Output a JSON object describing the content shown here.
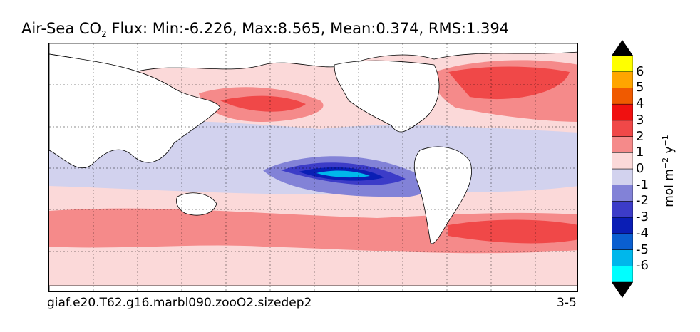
{
  "title": {
    "prefix": "Air-Sea CO",
    "subscript": "2",
    "stats": " Flux: Min:-6.226, Max:8.565, Mean:0.374, RMS:1.394"
  },
  "caption": "giaf.e20.T62.g16.marbl090.zooO2.sizedep2",
  "panel_id": "3-5",
  "colorbar": {
    "units_prefix": "mol m",
    "units_exp1": "−2",
    "units_mid": " y",
    "units_exp2": "−1",
    "ticks": [
      "6",
      "5",
      "4",
      "3",
      "2",
      "1",
      "0",
      "-1",
      "-2",
      "-3",
      "-4",
      "-5",
      "-6"
    ],
    "colors": [
      "#00ffff",
      "#00b7eb",
      "#0a5fd0",
      "#0a1eb5",
      "#3c3cc8",
      "#8282d7",
      "#d2d2ee",
      "#fbd9d9",
      "#f58a8a",
      "#f04848",
      "#f01010",
      "#f05a00",
      "#ffa500",
      "#ffff00"
    ],
    "over_color": "#000000",
    "under_color": "#000000"
  }
}
